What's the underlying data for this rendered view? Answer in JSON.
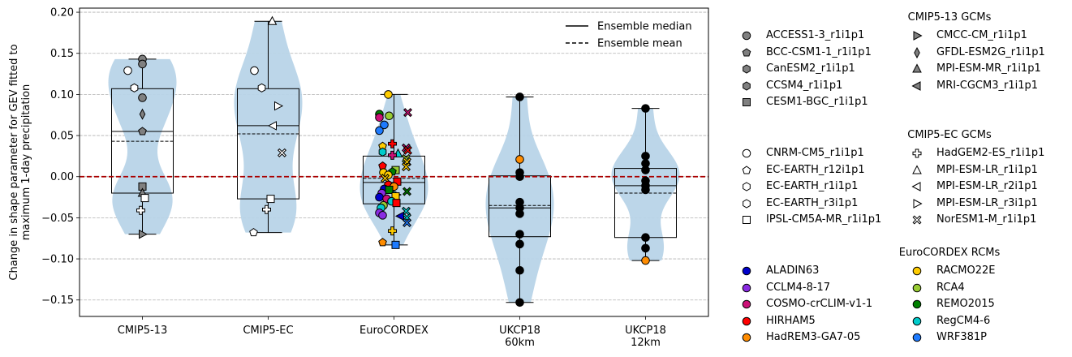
{
  "chart_data": {
    "type": "violin+box+strip",
    "ylabel": "Change in shape parameter for GEV fitted to\nmaximum 1-day precipitation",
    "xlabel": "",
    "ylim": [
      -0.17,
      0.205
    ],
    "yticks": [
      -0.15,
      -0.1,
      -0.05,
      0.0,
      0.05,
      0.1,
      0.15,
      0.2
    ],
    "ytick_labels": [
      "−0.15",
      "−0.10",
      "−0.05",
      "0.00",
      "0.05",
      "0.10",
      "0.15",
      "0.20"
    ],
    "grid": "horizontal dashed",
    "reference_line": {
      "y": 0.0,
      "color": "#aa0000",
      "style": "dashed"
    },
    "line_legend": {
      "placement": "top-right",
      "entries": [
        {
          "label": "Ensemble median",
          "style": "solid"
        },
        {
          "label": "Ensemble mean",
          "style": "dashed"
        }
      ]
    },
    "categories": [
      {
        "label": "CMIP5-13",
        "lines": [
          "CMIP5-13"
        ],
        "min": -0.07,
        "q1": -0.02,
        "median": 0.055,
        "mean": 0.043,
        "q3": 0.107,
        "max": 0.143,
        "points": [
          {
            "y": 0.143,
            "m": "circle",
            "c": "#808080",
            "dx": 0
          },
          {
            "y": 0.137,
            "m": "circle",
            "c": "#808080",
            "dx": 0
          },
          {
            "y": 0.129,
            "m": "circle",
            "c": "#ffffff",
            "dx": -18
          },
          {
            "y": 0.108,
            "m": "hexagon",
            "c": "#ffffff",
            "dx": -10
          },
          {
            "y": 0.096,
            "m": "circle",
            "c": "#808080",
            "dx": 0
          },
          {
            "y": 0.076,
            "m": "thin_diamond",
            "c": "#808080",
            "dx": 0
          },
          {
            "y": 0.055,
            "m": "pentagon",
            "c": "#808080",
            "dx": 0
          },
          {
            "y": -0.012,
            "m": "square",
            "c": "#808080",
            "dx": 0
          },
          {
            "y": -0.02,
            "m": "triangle_up",
            "c": "#808080",
            "dx": 0
          },
          {
            "y": -0.026,
            "m": "square",
            "c": "#ffffff",
            "dx": 3
          },
          {
            "y": -0.041,
            "m": "plus",
            "c": "#ffffff",
            "dx": -2
          },
          {
            "y": -0.07,
            "m": "triangle_right",
            "c": "#808080",
            "dx": 0
          }
        ]
      },
      {
        "label": "CMIP5-EC",
        "lines": [
          "CMIP5-EC"
        ],
        "min": -0.068,
        "q1": -0.027,
        "median": 0.062,
        "mean": 0.052,
        "q3": 0.107,
        "max": 0.189,
        "points": [
          {
            "y": 0.189,
            "m": "triangle_up",
            "c": "#ffffff",
            "dx": 5
          },
          {
            "y": 0.129,
            "m": "circle",
            "c": "#ffffff",
            "dx": -17
          },
          {
            "y": 0.108,
            "m": "hexagon",
            "c": "#ffffff",
            "dx": -8
          },
          {
            "y": 0.086,
            "m": "triangle_right",
            "c": "#ffffff",
            "dx": 12
          },
          {
            "y": 0.062,
            "m": "triangle_left",
            "c": "#ffffff",
            "dx": 6
          },
          {
            "y": 0.029,
            "m": "x",
            "c": "#ffffff",
            "dx": 17
          },
          {
            "y": -0.027,
            "m": "square",
            "c": "#ffffff",
            "dx": 3
          },
          {
            "y": -0.04,
            "m": "plus",
            "c": "#ffffff",
            "dx": -2
          },
          {
            "y": -0.068,
            "m": "pentagon",
            "c": "#ffffff",
            "dx": -18
          }
        ]
      },
      {
        "label": "EuroCORDEX",
        "lines": [
          "EuroCORDEX"
        ],
        "min": -0.083,
        "q1": -0.033,
        "median": -0.007,
        "mean": -0.002,
        "q3": 0.025,
        "max": 0.1,
        "points": [
          {
            "y": 0.1,
            "m": "circle",
            "c": "#ffcc00",
            "dx": -7
          },
          {
            "y": 0.078,
            "m": "x",
            "c": "#cc1177",
            "dx": 17
          },
          {
            "y": 0.076,
            "m": "circle",
            "c": "#008000",
            "dx": -18
          },
          {
            "y": 0.074,
            "m": "circle",
            "c": "#99cc33",
            "dx": -6
          },
          {
            "y": 0.072,
            "m": "circle",
            "c": "#cc1177",
            "dx": -18
          },
          {
            "y": 0.063,
            "m": "circle",
            "c": "#1e7bff",
            "dx": -12
          },
          {
            "y": 0.056,
            "m": "circle",
            "c": "#1e7bff",
            "dx": -18
          },
          {
            "y": 0.04,
            "m": "plus",
            "c": "#ff0000",
            "dx": -2
          },
          {
            "y": 0.037,
            "m": "pentagon",
            "c": "#ffcc00",
            "dx": -14
          },
          {
            "y": 0.035,
            "m": "x",
            "c": "#cc1177",
            "dx": 15
          },
          {
            "y": 0.032,
            "m": "x",
            "c": "#ff0000",
            "dx": 17
          },
          {
            "y": 0.03,
            "m": "hexagon",
            "c": "#00cccc",
            "dx": -14
          },
          {
            "y": 0.028,
            "m": "triangle_up",
            "c": "#00cccc",
            "dx": 5
          },
          {
            "y": 0.026,
            "m": "plus",
            "c": "#cc1177",
            "dx": -2
          },
          {
            "y": 0.022,
            "m": "x",
            "c": "#99cc33",
            "dx": 15
          },
          {
            "y": 0.018,
            "m": "x",
            "c": "#ffcc00",
            "dx": 16
          },
          {
            "y": 0.013,
            "m": "pentagon",
            "c": "#ff0000",
            "dx": -14
          },
          {
            "y": 0.012,
            "m": "x",
            "c": "#ffcc00",
            "dx": 15
          },
          {
            "y": 0.008,
            "m": "square",
            "c": "#99cc33",
            "dx": 2
          },
          {
            "y": 0.006,
            "m": "pentagon",
            "c": "#008000",
            "dx": -2
          },
          {
            "y": 0.005,
            "m": "circle",
            "c": "#ffcc00",
            "dx": -13
          },
          {
            "y": 0.002,
            "m": "circle",
            "c": "#ffcc00",
            "dx": -7
          },
          {
            "y": -0.002,
            "m": "x",
            "c": "#ffcc00",
            "dx": -11
          },
          {
            "y": -0.006,
            "m": "square",
            "c": "#ff0000",
            "dx": 4
          },
          {
            "y": -0.01,
            "m": "circle",
            "c": "#ff0000",
            "dx": -7
          },
          {
            "y": -0.012,
            "m": "circle",
            "c": "#ff8c00",
            "dx": 0
          },
          {
            "y": -0.015,
            "m": "circle",
            "c": "#0000cc",
            "dx": -12
          },
          {
            "y": -0.016,
            "m": "square",
            "c": "#008000",
            "dx": -6
          },
          {
            "y": -0.018,
            "m": "x",
            "c": "#008000",
            "dx": 16
          },
          {
            "y": -0.02,
            "m": "circle",
            "c": "#8a2be2",
            "dx": -15
          },
          {
            "y": -0.022,
            "m": "triangle_right",
            "c": "#00cccc",
            "dx": 3
          },
          {
            "y": -0.024,
            "m": "square",
            "c": "#ffcc00",
            "dx": 2
          },
          {
            "y": -0.025,
            "m": "circle",
            "c": "#0000cc",
            "dx": -18
          },
          {
            "y": -0.027,
            "m": "circle",
            "c": "#cc1177",
            "dx": -9
          },
          {
            "y": -0.03,
            "m": "circle",
            "c": "#00cccc",
            "dx": -3
          },
          {
            "y": -0.032,
            "m": "square",
            "c": "#ff0000",
            "dx": 3
          },
          {
            "y": -0.035,
            "m": "circle",
            "c": "#99cc33",
            "dx": -13
          },
          {
            "y": -0.038,
            "m": "circle",
            "c": "#00cccc",
            "dx": -16
          },
          {
            "y": -0.042,
            "m": "x",
            "c": "#00cccc",
            "dx": 15
          },
          {
            "y": -0.044,
            "m": "circle",
            "c": "#8a2be2",
            "dx": -18
          },
          {
            "y": -0.047,
            "m": "circle",
            "c": "#8a2be2",
            "dx": -14
          },
          {
            "y": -0.048,
            "m": "triangle_left",
            "c": "#0000cc",
            "dx": 8
          },
          {
            "y": -0.05,
            "m": "x",
            "c": "#00cccc",
            "dx": 16
          },
          {
            "y": -0.056,
            "m": "x",
            "c": "#1e7bff",
            "dx": 16
          },
          {
            "y": -0.066,
            "m": "plus",
            "c": "#ffcc00",
            "dx": -2
          },
          {
            "y": -0.08,
            "m": "pentagon",
            "c": "#ff8c00",
            "dx": -14
          },
          {
            "y": -0.083,
            "m": "square",
            "c": "#1e7bff",
            "dx": 2
          }
        ]
      },
      {
        "label": "UKCP18 60km",
        "lines": [
          "UKCP18",
          "60km"
        ],
        "min": -0.153,
        "q1": -0.073,
        "median": -0.038,
        "mean": -0.035,
        "q3": 0.001,
        "max": 0.097,
        "points": [
          {
            "y": 0.097,
            "m": "circle",
            "c": "#000000",
            "dx": 0
          },
          {
            "y": 0.021,
            "m": "circle",
            "c": "#ff8c00",
            "dx": 0
          },
          {
            "y": 0.005,
            "m": "circle",
            "c": "#000000",
            "dx": 0
          },
          {
            "y": 0.0,
            "m": "circle",
            "c": "#000000",
            "dx": 0
          },
          {
            "y": -0.031,
            "m": "circle",
            "c": "#000000",
            "dx": 0
          },
          {
            "y": -0.038,
            "m": "circle",
            "c": "#000000",
            "dx": 0
          },
          {
            "y": -0.045,
            "m": "circle",
            "c": "#000000",
            "dx": 0
          },
          {
            "y": -0.07,
            "m": "circle",
            "c": "#000000",
            "dx": 0
          },
          {
            "y": -0.082,
            "m": "circle",
            "c": "#000000",
            "dx": 0
          },
          {
            "y": -0.114,
            "m": "circle",
            "c": "#000000",
            "dx": 0
          },
          {
            "y": -0.153,
            "m": "circle",
            "c": "#000000",
            "dx": 0
          }
        ]
      },
      {
        "label": "UKCP18 12km",
        "lines": [
          "UKCP18",
          "12km"
        ],
        "min": -0.102,
        "q1": -0.074,
        "median": -0.011,
        "mean": -0.02,
        "q3": 0.01,
        "max": 0.083,
        "points": [
          {
            "y": 0.083,
            "m": "circle",
            "c": "#000000",
            "dx": 0
          },
          {
            "y": 0.025,
            "m": "circle",
            "c": "#000000",
            "dx": 0
          },
          {
            "y": 0.016,
            "m": "circle",
            "c": "#000000",
            "dx": 0
          },
          {
            "y": 0.008,
            "m": "circle",
            "c": "#000000",
            "dx": 0
          },
          {
            "y": -0.005,
            "m": "circle",
            "c": "#000000",
            "dx": 0
          },
          {
            "y": -0.011,
            "m": "circle",
            "c": "#000000",
            "dx": 0
          },
          {
            "y": -0.016,
            "m": "circle",
            "c": "#000000",
            "dx": 0
          },
          {
            "y": -0.074,
            "m": "circle",
            "c": "#000000",
            "dx": 0
          },
          {
            "y": -0.087,
            "m": "circle",
            "c": "#000000",
            "dx": 0
          },
          {
            "y": -0.102,
            "m": "circle",
            "c": "#ff8c00",
            "dx": 0
          }
        ]
      }
    ],
    "violin_color": "#b8d4e8",
    "box_color": "#000000"
  },
  "legend_groups": [
    {
      "title": "CMIP5-13 GCMs",
      "columns": [
        [
          {
            "label": "ACCESS1-3_r1i1p1",
            "marker": "circle",
            "color": "#808080"
          },
          {
            "label": "BCC-CSM1-1_r1i1p1",
            "marker": "pentagon",
            "color": "#808080"
          },
          {
            "label": "CanESM2_r1i1p1",
            "marker": "hexagon",
            "color": "#808080"
          },
          {
            "label": "CCSM4_r1i1p1",
            "marker": "hexagon",
            "color": "#808080"
          },
          {
            "label": "CESM1-BGC_r1i1p1",
            "marker": "square",
            "color": "#808080"
          }
        ],
        [
          {
            "label": "CMCC-CM_r1i1p1",
            "marker": "triangle_right",
            "color": "#808080"
          },
          {
            "label": "GFDL-ESM2G_r1i1p1",
            "marker": "thin_diamond",
            "color": "#808080"
          },
          {
            "label": "MPI-ESM-MR_r1i1p1",
            "marker": "triangle_up",
            "color": "#808080"
          },
          {
            "label": "MRI-CGCM3_r1i1p1",
            "marker": "triangle_left",
            "color": "#808080"
          }
        ]
      ]
    },
    {
      "title": "CMIP5-EC GCMs",
      "columns": [
        [
          {
            "label": "CNRM-CM5_r1i1p1",
            "marker": "circle",
            "color": "#ffffff"
          },
          {
            "label": "EC-EARTH_r12i1p1",
            "marker": "pentagon",
            "color": "#ffffff"
          },
          {
            "label": "EC-EARTH_r1i1p1",
            "marker": "hexagon",
            "color": "#ffffff"
          },
          {
            "label": "EC-EARTH_r3i1p1",
            "marker": "hexagon",
            "color": "#ffffff"
          },
          {
            "label": "IPSL-CM5A-MR_r1i1p1",
            "marker": "square",
            "color": "#ffffff"
          }
        ],
        [
          {
            "label": "HadGEM2-ES_r1i1p1",
            "marker": "plus",
            "color": "#ffffff"
          },
          {
            "label": "MPI-ESM-LR_r1i1p1",
            "marker": "triangle_up",
            "color": "#ffffff"
          },
          {
            "label": "MPI-ESM-LR_r2i1p1",
            "marker": "triangle_left",
            "color": "#ffffff"
          },
          {
            "label": "MPI-ESM-LR_r3i1p1",
            "marker": "triangle_right",
            "color": "#ffffff"
          },
          {
            "label": "NorESM1-M_r1i1p1",
            "marker": "x",
            "color": "#ffffff"
          }
        ]
      ]
    },
    {
      "title": "EuroCORDEX RCMs",
      "columns": [
        [
          {
            "label": "ALADIN63",
            "marker": "circle",
            "color": "#0000cc"
          },
          {
            "label": "CCLM4-8-17",
            "marker": "circle",
            "color": "#8a2be2"
          },
          {
            "label": "COSMO-crCLIM-v1-1",
            "marker": "circle",
            "color": "#cc1177"
          },
          {
            "label": "HIRHAM5",
            "marker": "circle",
            "color": "#ff0000"
          },
          {
            "label": "HadREM3-GA7-05",
            "marker": "circle",
            "color": "#ff8c00"
          }
        ],
        [
          {
            "label": "RACMO22E",
            "marker": "circle",
            "color": "#ffcc00"
          },
          {
            "label": "RCA4",
            "marker": "circle",
            "color": "#99cc33"
          },
          {
            "label": "REMO2015",
            "marker": "circle",
            "color": "#008000"
          },
          {
            "label": "RegCM4-6",
            "marker": "circle",
            "color": "#00cccc"
          },
          {
            "label": "WRF381P",
            "marker": "circle",
            "color": "#1e7bff"
          }
        ]
      ]
    }
  ]
}
